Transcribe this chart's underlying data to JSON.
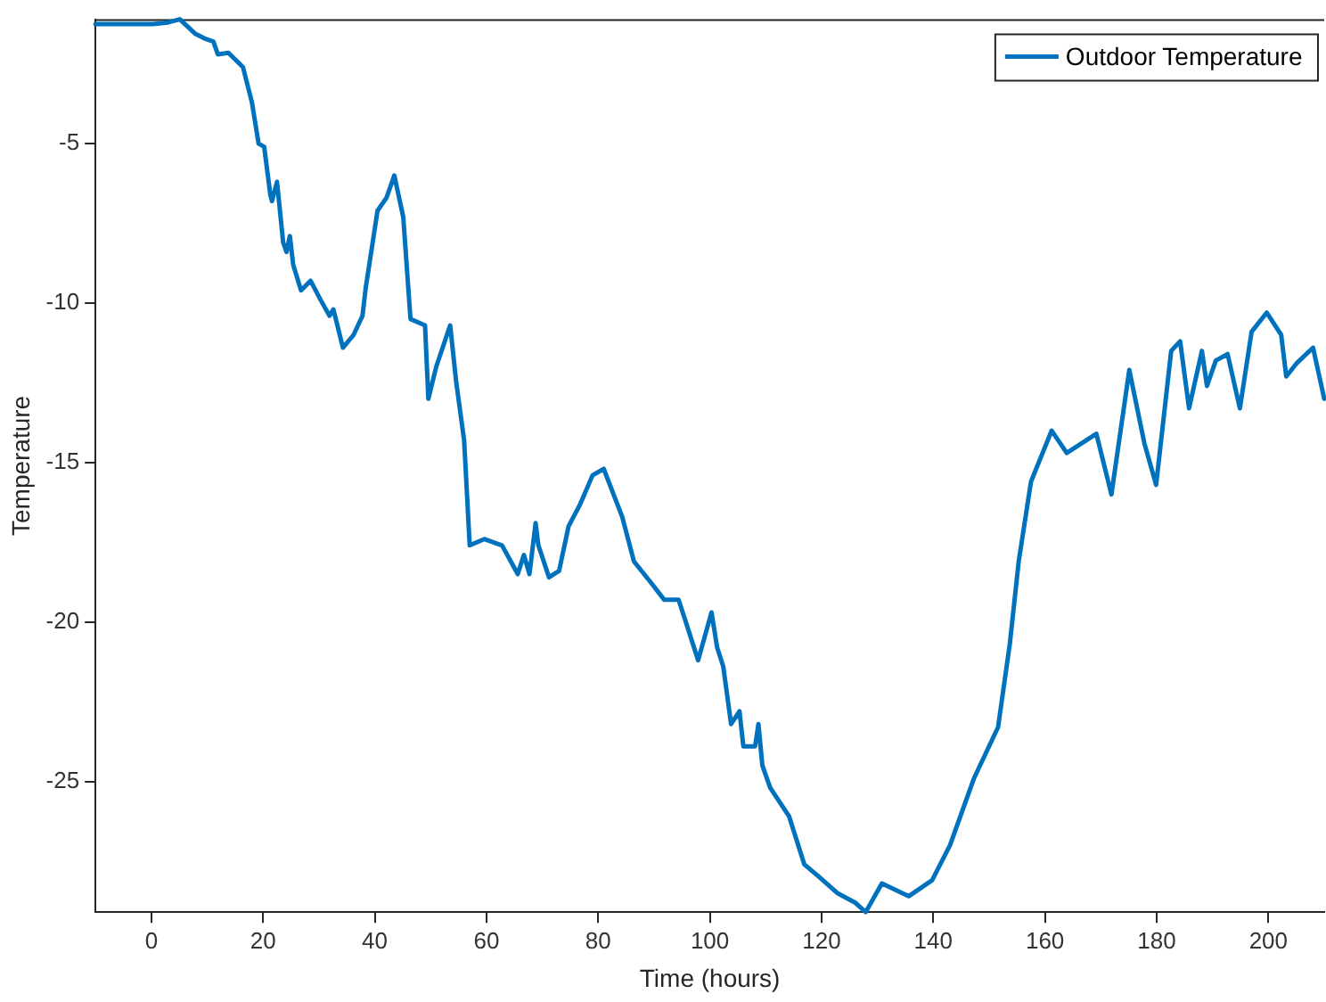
{
  "chart_data": {
    "type": "line",
    "xlabel": "Time (hours)",
    "ylabel": "Temperature",
    "xlim": [
      -10,
      210
    ],
    "xticks": [
      0,
      20,
      40,
      60,
      80,
      100,
      120,
      140,
      160,
      180,
      200
    ],
    "ylim": [
      -29.1,
      -1.1
    ],
    "yticks": [
      -25,
      -20,
      -15,
      -10,
      -5
    ],
    "grid": false,
    "legend": "top right",
    "marker": "none",
    "line_style": "solid",
    "series": [
      {
        "name": "Outdoor Temperature",
        "color": "#0072bd",
        "x": [
          -10,
          0.3,
          3,
          5.1,
          7.9,
          9.5,
          11.1,
          11.9,
          13.8,
          16.4,
          18,
          19.2,
          20.2,
          21.3,
          21.6,
          22.5,
          23.6,
          24.2,
          24.8,
          25.4,
          26.8,
          28.5,
          30.3,
          31.9,
          32.6,
          34.3,
          36.2,
          37.8,
          38.4,
          40.5,
          42.1,
          43.5,
          45.1,
          46.4,
          49,
          49.6,
          51,
          53.5,
          54.6,
          56,
          57,
          59.6,
          62.8,
          65.6,
          66.7,
          67.7,
          68.8,
          69.3,
          71.2,
          73,
          74.7,
          76.8,
          79,
          81,
          84.3,
          86.4,
          89.6,
          91.8,
          94.4,
          95.5,
          97.9,
          100.3,
          101.3,
          102.4,
          103.8,
          105.3,
          106,
          108.1,
          108.7,
          109.4,
          110.8,
          114.2,
          116.9,
          119.6,
          122.8,
          126,
          127.9,
          130.8,
          135.6,
          139.8,
          143,
          147.3,
          151.6,
          153.7,
          155.3,
          157.5,
          161.2,
          163.9,
          169.2,
          171.9,
          175.1,
          177.8,
          179.9,
          182.6,
          184.2,
          185.8,
          188.1,
          189,
          190.6,
          192.7,
          194.9,
          197,
          199.7,
          202.3,
          203.2,
          205,
          208,
          210
        ],
        "values": [
          -1.25,
          -1.25,
          -1.2,
          -1.1,
          -1.56,
          -1.7,
          -1.8,
          -2.2,
          -2.15,
          -2.6,
          -3.7,
          -5.0,
          -5.1,
          -6.6,
          -6.8,
          -6.2,
          -8.1,
          -8.4,
          -7.9,
          -8.8,
          -9.6,
          -9.3,
          -9.9,
          -10.4,
          -10.2,
          -11.4,
          -11.0,
          -10.4,
          -9.5,
          -7.1,
          -6.7,
          -6.0,
          -7.3,
          -10.5,
          -10.7,
          -13.0,
          -12.0,
          -10.7,
          -12.5,
          -14.3,
          -17.6,
          -17.4,
          -17.6,
          -18.5,
          -17.9,
          -18.5,
          -16.9,
          -17.6,
          -18.6,
          -18.4,
          -17.0,
          -16.3,
          -15.4,
          -15.2,
          -16.7,
          -18.1,
          -18.8,
          -19.3,
          -19.3,
          -19.9,
          -21.2,
          -19.7,
          -20.8,
          -21.4,
          -23.2,
          -22.8,
          -23.9,
          -23.9,
          -23.2,
          -24.5,
          -25.2,
          -26.1,
          -27.6,
          -28.0,
          -28.5,
          -28.8,
          -29.1,
          -28.2,
          -28.6,
          -28.1,
          -27.0,
          -24.9,
          -23.3,
          -20.7,
          -18.1,
          -15.6,
          -14.0,
          -14.7,
          -14.1,
          -16.0,
          -12.1,
          -14.4,
          -15.7,
          -11.5,
          -11.2,
          -13.3,
          -11.5,
          -12.6,
          -11.8,
          -11.6,
          -13.3,
          -10.9,
          -10.3,
          -11.0,
          -12.3,
          -11.9,
          -11.4,
          -13.0
        ]
      }
    ]
  }
}
